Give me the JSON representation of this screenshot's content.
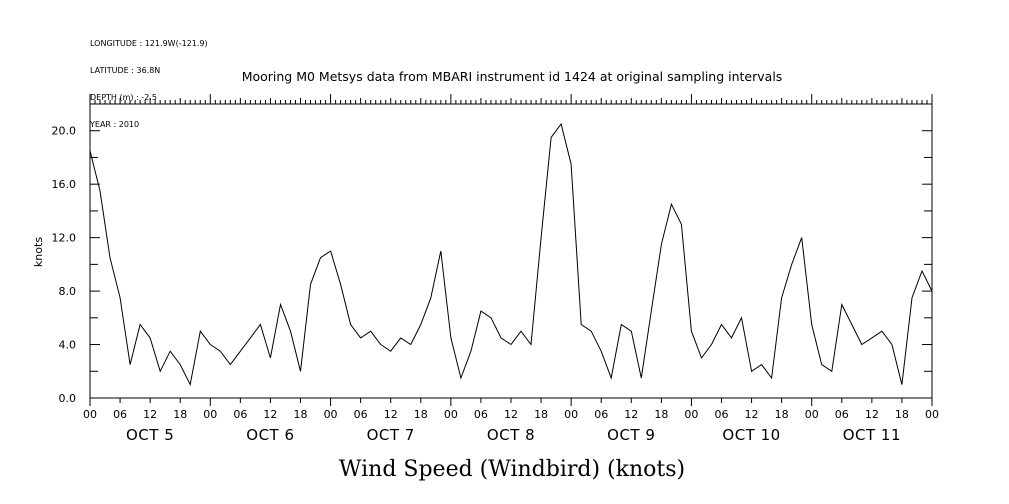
{
  "header": {
    "longitude": "LONGITUDE : 121.9W(-121.9)",
    "latitude": "LATITUDE : 36.8N",
    "depth": "DEPTH (m) : -2.5",
    "year": "YEAR : 2010"
  },
  "chart_data": {
    "type": "line",
    "title": "Mooring M0 Metsys data from MBARI instrument id 1424 at original sampling intervals",
    "xlabel": "Wind Speed (Windbird) (knots)",
    "ylabel": "knots",
    "ylim": [
      0,
      22
    ],
    "xlim_hours": [
      0,
      168
    ],
    "yticks": [
      "0.0",
      "4.0",
      "8.0",
      "12.0",
      "16.0",
      "20.0"
    ],
    "ytick_values": [
      0,
      4,
      8,
      12,
      16,
      20
    ],
    "hour_tick_labels": [
      "00",
      "06",
      "12",
      "18",
      "00",
      "06",
      "12",
      "18",
      "00",
      "06",
      "12",
      "18",
      "00",
      "06",
      "12",
      "18",
      "00",
      "06",
      "12",
      "18",
      "00",
      "06",
      "12",
      "18",
      "00",
      "06",
      "12",
      "18",
      "00"
    ],
    "day_labels": [
      "OCT  5",
      "OCT  6",
      "OCT  7",
      "OCT  8",
      "OCT  9",
      "OCT 10",
      "OCT 11"
    ],
    "grid": false,
    "series": [
      {
        "color": "#000000",
        "x": [
          0,
          2,
          4,
          6,
          8,
          10,
          12,
          14,
          16,
          18,
          20,
          22,
          24,
          26,
          28,
          30,
          32,
          34,
          36,
          38,
          40,
          42,
          44,
          46,
          48,
          50,
          52,
          54,
          56,
          58,
          60,
          62,
          64,
          66,
          68,
          70,
          72,
          74,
          76,
          78,
          80,
          82,
          84,
          86,
          88,
          90,
          92,
          94,
          96,
          98,
          100,
          102,
          104,
          106,
          108,
          110,
          112,
          114,
          116,
          118,
          120,
          122,
          124,
          126,
          128,
          130,
          132,
          134,
          136,
          138,
          140,
          142,
          144,
          146,
          148,
          150,
          152,
          154,
          156,
          158,
          160,
          162,
          164,
          166,
          168
        ],
        "y": [
          18.5,
          15.5,
          10.5,
          7.5,
          2.5,
          5.5,
          4.5,
          2.0,
          3.5,
          2.5,
          1.0,
          5.0,
          4.0,
          3.5,
          2.5,
          3.5,
          4.5,
          5.5,
          3.0,
          7.0,
          5.0,
          2.0,
          8.5,
          10.5,
          11.0,
          8.5,
          5.5,
          4.5,
          5.0,
          4.0,
          3.5,
          4.5,
          4.0,
          5.5,
          7.5,
          11.0,
          4.5,
          1.5,
          3.5,
          6.5,
          6.0,
          4.5,
          4.0,
          5.0,
          4.0,
          12.0,
          19.5,
          20.5,
          17.5,
          5.5,
          5.0,
          3.5,
          1.5,
          5.5,
          5.0,
          1.5,
          6.5,
          11.5,
          14.5,
          13.0,
          5.0,
          3.0,
          4.0,
          5.5,
          4.5,
          6.0,
          2.0,
          2.5,
          1.5,
          7.5,
          10.0,
          12.0,
          5.5,
          2.5,
          2.0,
          7.0,
          5.5,
          4.0,
          4.5,
          5.0,
          4.0,
          1.0,
          7.5,
          9.5,
          8.0
        ]
      }
    ]
  }
}
